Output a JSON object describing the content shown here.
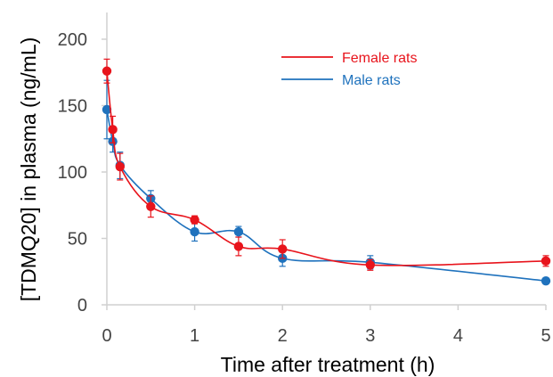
{
  "chart_data": {
    "type": "line",
    "title": "",
    "xlabel": "Time after treatment (h)",
    "ylabel": "[TDMQ20] in plasma (ng/mL)",
    "xlim": [
      0,
      5
    ],
    "ylim": [
      0,
      200
    ],
    "x_ticks": [
      0,
      1,
      2,
      3,
      4,
      5
    ],
    "y_ticks": [
      0,
      50,
      100,
      150,
      200
    ],
    "grid": false,
    "legend_position": "top-right",
    "series": [
      {
        "name": "Female rats",
        "color": "#e8141c",
        "points": [
          {
            "x": 0.0,
            "y": 176,
            "err": 9
          },
          {
            "x": 0.067,
            "y": 132,
            "err": 10
          },
          {
            "x": 0.15,
            "y": 104,
            "err": 10
          },
          {
            "x": 0.5,
            "y": 74,
            "err": 8
          },
          {
            "x": 1.0,
            "y": 64,
            "err": 3
          },
          {
            "x": 1.5,
            "y": 44,
            "err": 7
          },
          {
            "x": 2.0,
            "y": 42,
            "err": 7
          },
          {
            "x": 3.0,
            "y": 30,
            "err": 4
          },
          {
            "x": 5.0,
            "y": 33,
            "err": 4
          }
        ]
      },
      {
        "name": "Male rats",
        "color": "#1f72bd",
        "points": [
          {
            "x": 0.0,
            "y": 147,
            "err": 22
          },
          {
            "x": 0.067,
            "y": 123,
            "err": 8
          },
          {
            "x": 0.15,
            "y": 105,
            "err": 10
          },
          {
            "x": 0.5,
            "y": 80,
            "err": 6
          },
          {
            "x": 1.0,
            "y": 55,
            "err": 7
          },
          {
            "x": 1.5,
            "y": 55,
            "err": 4
          },
          {
            "x": 2.0,
            "y": 35,
            "err": 6
          },
          {
            "x": 3.0,
            "y": 32,
            "err": 5
          },
          {
            "x": 5.0,
            "y": 18,
            "err": 2
          }
        ]
      }
    ]
  }
}
